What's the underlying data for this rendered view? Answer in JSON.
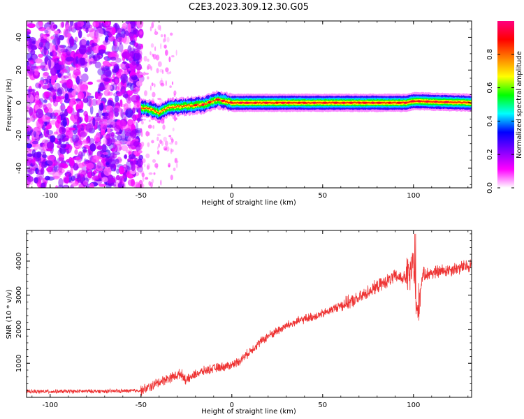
{
  "figure": {
    "title": "C2E3.2023.309.12.30.G05"
  },
  "chart_data": [
    {
      "type": "heatmap",
      "xlabel": "Height of straight line (km)",
      "ylabel": "Frequency (Hz)",
      "xlim": [
        -113,
        132
      ],
      "ylim": [
        -52,
        50
      ],
      "xticks": [
        -100,
        -50,
        0,
        50,
        100
      ],
      "yticks": [
        -40,
        -20,
        0,
        20,
        40
      ],
      "colorbar": {
        "label": "Normalized spectral amplitude",
        "range": [
          0,
          1
        ],
        "ticks": [
          0.0,
          0.2,
          0.4,
          0.6,
          0.8
        ],
        "colormap": [
          "#ffffff",
          "#ff00ff",
          "#8000ff",
          "#0000ff",
          "#00ffff",
          "#00ff00",
          "#ffff00",
          "#ff8000",
          "#ff0000",
          "#ff0080"
        ]
      },
      "features": {
        "noise_region_x": [
          -113,
          -50
        ],
        "signal_start_x": -50,
        "signal_center_freq": 0,
        "signal_peak_amplitude": 0.95,
        "signal_trace": [
          {
            "x": -50,
            "f": -3
          },
          {
            "x": -45,
            "f": -4
          },
          {
            "x": -40,
            "f": -6
          },
          {
            "x": -35,
            "f": -3
          },
          {
            "x": -25,
            "f": -2
          },
          {
            "x": -15,
            "f": -1
          },
          {
            "x": -8,
            "f": 2
          },
          {
            "x": -4,
            "f": 1
          },
          {
            "x": 0,
            "f": 0
          },
          {
            "x": 50,
            "f": 0
          },
          {
            "x": 96,
            "f": 0
          },
          {
            "x": 100,
            "f": 1
          },
          {
            "x": 132,
            "f": 0
          }
        ]
      },
      "grid": false
    },
    {
      "type": "line",
      "xlabel": "Height of straight line (km)",
      "ylabel": "SNR (10 * v/v)",
      "xlim": [
        -113,
        132
      ],
      "ylim": [
        0,
        4900
      ],
      "xticks": [
        -100,
        -50,
        0,
        50,
        100
      ],
      "yticks": [
        1000,
        2000,
        3000,
        4000
      ],
      "color": "#ee3333",
      "grid": false,
      "series": [
        {
          "x": [
            -113,
            -100,
            -90,
            -80,
            -70,
            -60,
            -50,
            -45,
            -40,
            -35,
            -30,
            -28,
            -25,
            -20,
            -15,
            -10,
            -5,
            0,
            5,
            10,
            15,
            20,
            25,
            30,
            40,
            50,
            60,
            70,
            75,
            80,
            85,
            90,
            95,
            98,
            100,
            102,
            105,
            110,
            115,
            120,
            125,
            130,
            132
          ],
          "values": [
            170,
            170,
            175,
            180,
            180,
            185,
            200,
            300,
            450,
            560,
            650,
            700,
            500,
            680,
            780,
            850,
            900,
            950,
            1100,
            1350,
            1600,
            1800,
            1950,
            2100,
            2300,
            2450,
            2700,
            2900,
            3100,
            3250,
            3400,
            3550,
            3500,
            3600,
            3900,
            2400,
            3600,
            3650,
            3700,
            3750,
            3800,
            3850,
            3900
          ]
        }
      ]
    }
  ]
}
